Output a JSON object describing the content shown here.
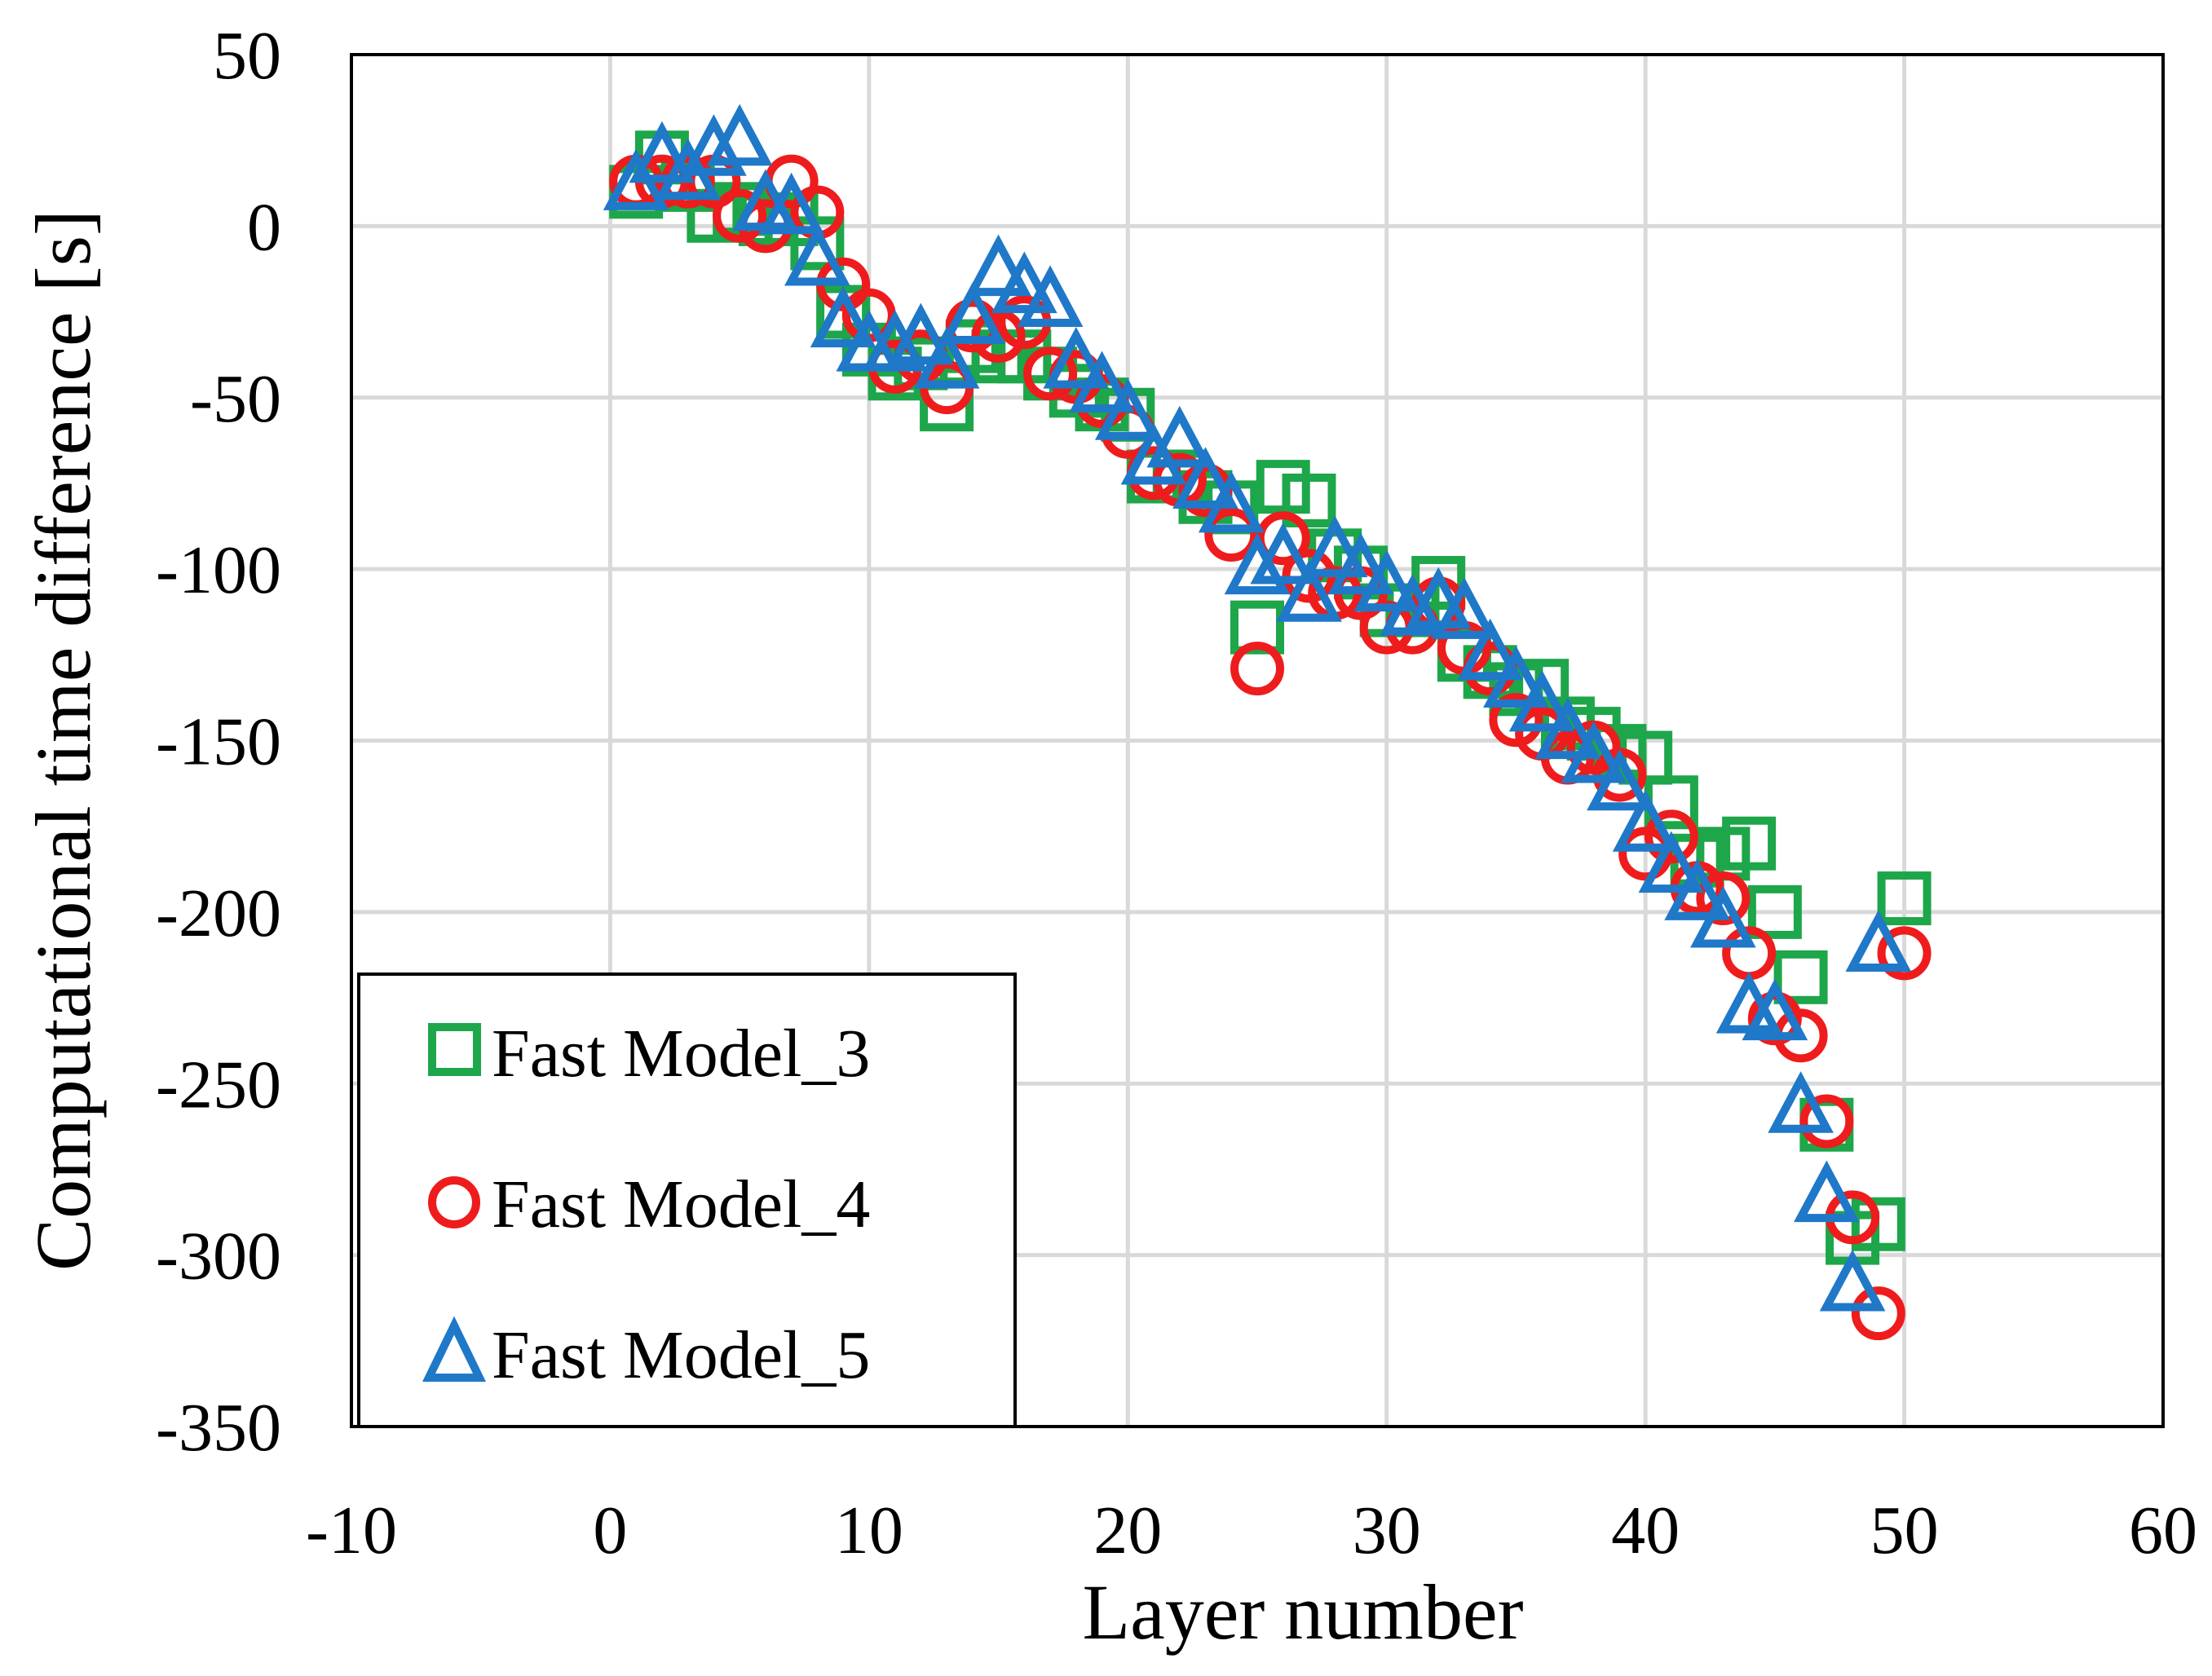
{
  "chart_data": {
    "type": "scatter",
    "title": "",
    "xlabel": "Layer number",
    "ylabel": "Computational time difference [s]",
    "xlim": [
      -10,
      60
    ],
    "ylim": [
      -350,
      50
    ],
    "xticks": [
      -10,
      0,
      10,
      20,
      30,
      40,
      50,
      60
    ],
    "yticks": [
      50,
      0,
      -50,
      -100,
      -150,
      -200,
      -250,
      -300,
      -350
    ],
    "xtick_labels": [
      "-10",
      "0",
      "10",
      "20",
      "30",
      "40",
      "50",
      "60"
    ],
    "ytick_labels": [
      "50",
      "0",
      "-50",
      "-100",
      "-150",
      "-200",
      "-250",
      "-300",
      "-350"
    ],
    "grid": true,
    "legend_position": "bottom-left",
    "series": [
      {
        "name": "Fast Model_3",
        "marker": "square",
        "color": "#1ea64a",
        "x": [
          1,
          2,
          3,
          4,
          5,
          6,
          7,
          8,
          9,
          10,
          11,
          12,
          13,
          14,
          15,
          16,
          17,
          18,
          19,
          20,
          21,
          22,
          23,
          24,
          25,
          26,
          27,
          28,
          29,
          30,
          31,
          32,
          33,
          34,
          35,
          36,
          37,
          38,
          39,
          40,
          41,
          42,
          43,
          44,
          45,
          46,
          47,
          48,
          49,
          50
        ],
        "y": [
          10,
          20,
          12,
          3,
          5,
          2,
          2,
          -5,
          -25,
          -36,
          -43,
          -40,
          -52,
          -35,
          -38,
          -38,
          -43,
          -48,
          -52,
          -55,
          -73,
          -73,
          -79,
          -82,
          -117,
          -76,
          -80,
          -96,
          -101,
          -112,
          -112,
          -104,
          -125,
          -130,
          -135,
          -134,
          -145,
          -148,
          -153,
          -155,
          -168,
          -185,
          -183,
          -180,
          -200,
          -219,
          -262,
          -295,
          -291,
          -196
        ]
      },
      {
        "name": "Fast Model_4",
        "marker": "circle",
        "color": "#ee1c1c",
        "x": [
          1,
          2,
          3,
          4,
          5,
          6,
          7,
          8,
          9,
          10,
          11,
          12,
          13,
          14,
          15,
          16,
          17,
          18,
          19,
          20,
          21,
          22,
          23,
          24,
          25,
          26,
          27,
          28,
          29,
          30,
          31,
          32,
          33,
          34,
          35,
          36,
          37,
          38,
          39,
          40,
          41,
          42,
          43,
          44,
          45,
          46,
          47,
          48,
          49,
          50
        ],
        "y": [
          13,
          13,
          13,
          13,
          3,
          0,
          13,
          4,
          -17,
          -26,
          -41,
          -38,
          -47,
          -29,
          -32,
          -28,
          -43,
          -44,
          -51,
          -60,
          -72,
          -74,
          -77,
          -90,
          -129,
          -91,
          -102,
          -107,
          -107,
          -117,
          -117,
          -110,
          -123,
          -129,
          -144,
          -148,
          -155,
          -152,
          -160,
          -183,
          -178,
          -193,
          -196,
          -212,
          -231,
          -236,
          -261,
          -289,
          -317,
          -212
        ]
      },
      {
        "name": "Fast Model_5",
        "marker": "triangle",
        "color": "#1f78c8",
        "x": [
          1,
          2,
          3,
          4,
          5,
          6,
          7,
          8,
          9,
          10,
          11,
          12,
          13,
          14,
          15,
          16,
          17,
          18,
          19,
          20,
          21,
          22,
          23,
          24,
          25,
          26,
          27,
          28,
          29,
          30,
          31,
          32,
          33,
          34,
          35,
          36,
          37,
          38,
          39,
          40,
          41,
          42,
          43,
          44,
          45,
          46,
          47,
          48,
          49,
          50
        ],
        "y": [
          12,
          20,
          15,
          22,
          25,
          6,
          5,
          -10,
          -28,
          -35,
          -35,
          -33,
          -40,
          -27,
          -13,
          -18,
          -22,
          -40,
          -47,
          -55,
          -68,
          -63,
          -75,
          -82,
          -100,
          -97,
          -108,
          -95,
          -100,
          -105,
          -112,
          -110,
          -113,
          -125,
          -133,
          -140,
          -148,
          -155,
          -163,
          -175,
          -187,
          -195,
          -203,
          -228,
          -230,
          -257,
          -283,
          -309,
          -210,
          null
        ]
      }
    ]
  }
}
